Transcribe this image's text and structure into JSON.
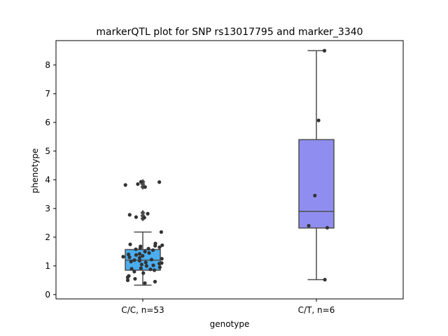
{
  "chart_data": {
    "type": "box",
    "title": "markerQTL plot for SNP rs13017795 and marker_3340",
    "xlabel": "genotype",
    "ylabel": "phenotype",
    "ylim": [
      -0.15,
      8.85
    ],
    "yticks": [
      0,
      1,
      2,
      3,
      4,
      5,
      6,
      7,
      8
    ],
    "categories": [
      "C/C, n=53",
      "C/T, n=6"
    ],
    "boxes": [
      {
        "name": "C/C, n=53",
        "color": "#4aaef0",
        "whisker_low": 0.33,
        "q1": 0.85,
        "median": 1.2,
        "q3": 1.57,
        "whisker_high": 2.18,
        "outliers": [
          2.65,
          2.75,
          2.85,
          3.75,
          3.85,
          3.93
        ],
        "points": [
          3.92,
          3.82,
          3.75,
          3.85,
          3.93,
          2.82,
          2.78,
          2.7,
          2.68,
          2.18,
          1.78,
          1.75,
          1.72,
          1.7,
          1.68,
          1.65,
          1.62,
          1.6,
          1.58,
          1.55,
          1.5,
          1.45,
          1.42,
          1.4,
          1.38,
          1.35,
          1.32,
          1.3,
          1.28,
          1.25,
          1.22,
          1.2,
          1.18,
          1.15,
          1.12,
          1.1,
          1.08,
          1.05,
          1.02,
          1.0,
          0.95,
          0.92,
          0.9,
          0.88,
          0.85,
          0.8,
          0.75,
          0.65,
          0.6,
          0.55,
          0.5,
          0.45,
          0.4
        ]
      },
      {
        "name": "C/T, n=6",
        "color": "#8f8ef0",
        "whisker_low": 0.52,
        "q1": 2.32,
        "median": 2.9,
        "q3": 5.4,
        "whisker_high": 8.5,
        "outliers": [],
        "points": [
          8.5,
          6.07,
          3.45,
          2.4,
          2.33,
          0.52
        ]
      }
    ],
    "grid": false,
    "legend": "none"
  }
}
